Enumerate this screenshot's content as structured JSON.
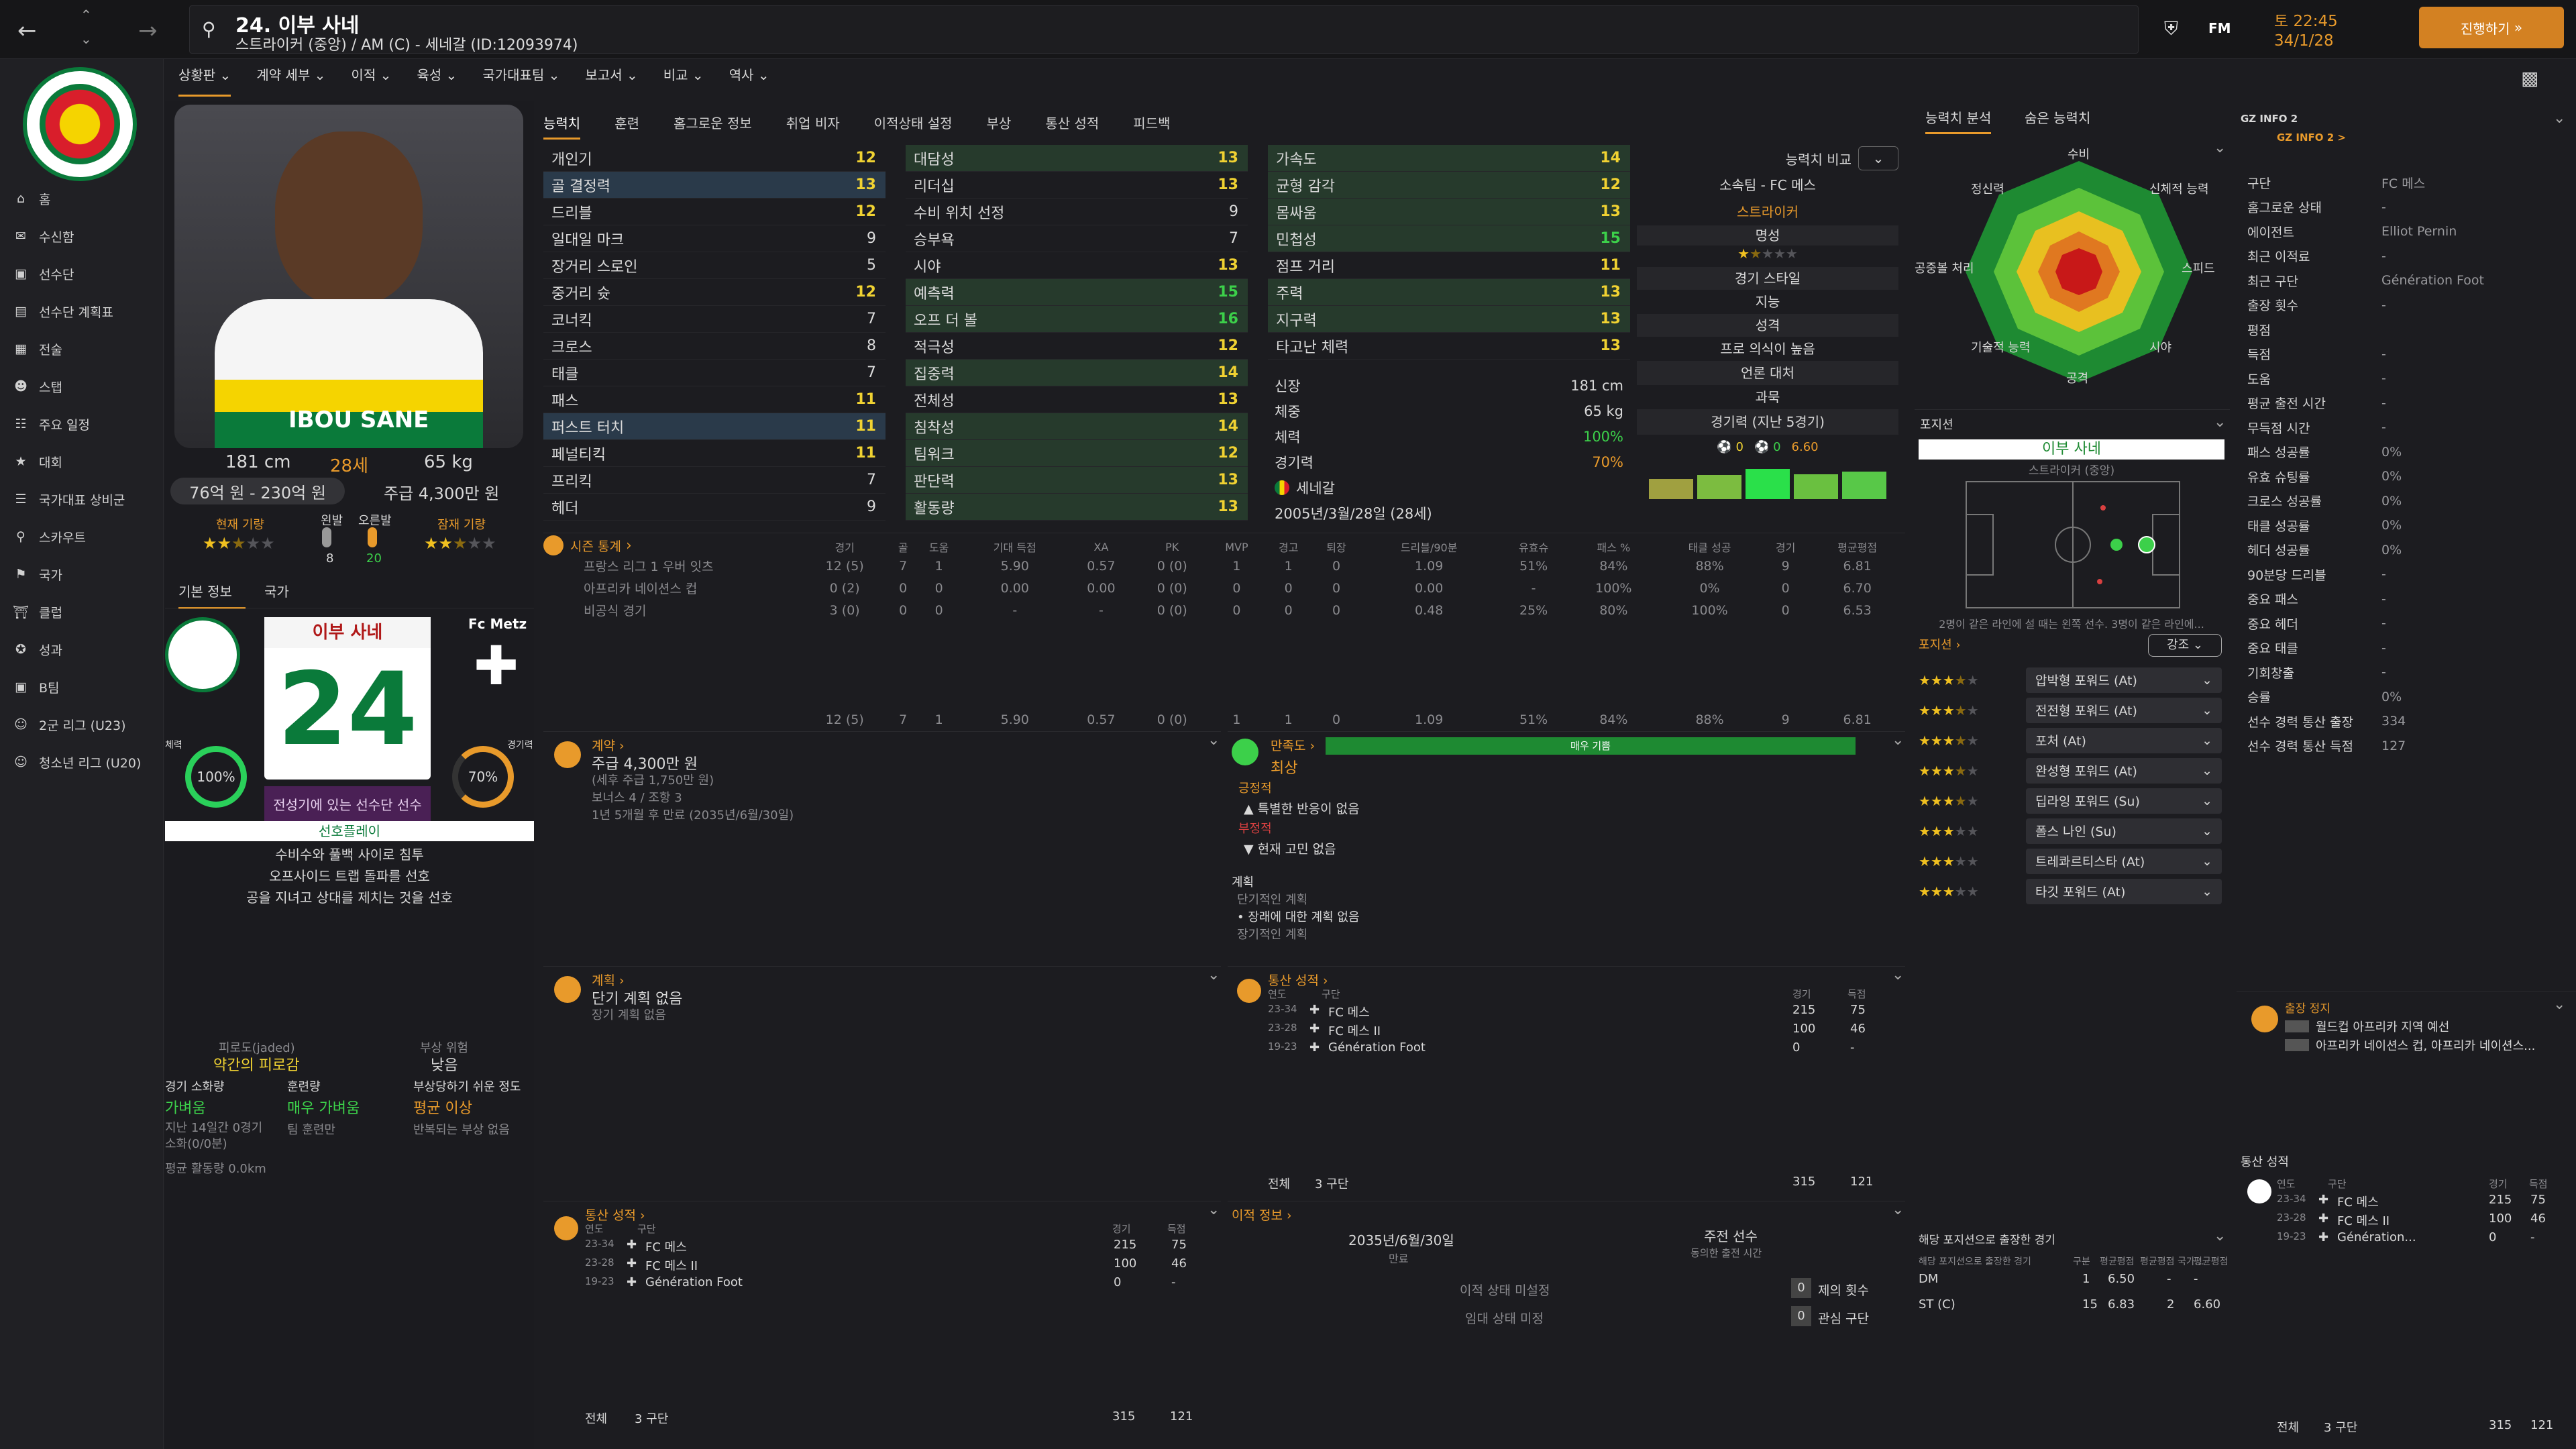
{
  "header": {
    "title": "24. 이부 사네",
    "subtitle": "스트라이커 (중앙) / AM (C) - 세네갈 (ID:12093974)",
    "date": "토 22:45",
    "date2": "34/1/28",
    "continue": "진행하기",
    "fm": "FM"
  },
  "menu": [
    "상황판",
    "계약 세부",
    "이적",
    "육성",
    "국가대표팀",
    "보고서",
    "비교",
    "역사"
  ],
  "sidebar": [
    "홈",
    "수신함",
    "선수단",
    "선수단 계획표",
    "전술",
    "스탭",
    "주요 일정",
    "대회",
    "국가대표 상비군",
    "스카우트",
    "국가",
    "클럽",
    "성과",
    "B팀",
    "2군 리그 (U23)",
    "청소년 리그 (U20)"
  ],
  "profile": {
    "height": "181 cm",
    "age": "28세",
    "weight": "65 kg",
    "value": "76억 원 - 230억 원",
    "wage": "주급 4,300만 원",
    "cur_ability": "현재 기량",
    "pot_ability": "잠재 기량",
    "left": "왼발",
    "right": "오른발",
    "left_val": "8",
    "right_val": "20",
    "shirt_name": "IBOU SANE"
  },
  "card": {
    "tab_basic": "기본 정보",
    "tab_nation": "국가",
    "name": "이부 사네",
    "number": "24",
    "club": "Fc Metz",
    "fitness_label": "체력",
    "fitness": "100%",
    "sharp_label": "경기력",
    "sharp": "70%",
    "status": "전성기에 있는 선수단 선수",
    "pref_title": "선호플레이",
    "prefs": [
      "수비수와 풀백 사이로 침투",
      "오프사이드 트랩 돌파를 선호",
      "공을 지녀고 상대를 제치는 것을 선호"
    ]
  },
  "fatigue": {
    "label": "피로도(jaded)",
    "value": "약간의 피로감",
    "injury_label": "부상 위험",
    "injury_val": "낮음",
    "load_label": "경기 소화량",
    "load_val": "가벼움",
    "train_label": "훈련량",
    "train_val": "매우 가벼움",
    "injp_label": "부상당하기 쉬운 정도",
    "injp_val": "평균 이상",
    "note1": "지난 14일간 0경기 소화(0/0분)",
    "note2": "팀 훈련만",
    "note3": "반복되는 부상 없음",
    "dist": "평균 활동량 0.0km"
  },
  "tabs": [
    "능력치",
    "훈련",
    "홈그로운 정보",
    "취업 비자",
    "이적상태 설정",
    "부상",
    "통산 성적",
    "피드백"
  ],
  "attrs_col1": [
    [
      "개인기",
      "12"
    ],
    [
      "골 결정력",
      "13"
    ],
    [
      "드리블",
      "12"
    ],
    [
      "일대일 마크",
      "9"
    ],
    [
      "장거리 스로인",
      "5"
    ],
    [
      "중거리 슛",
      "12"
    ],
    [
      "코너킥",
      "7"
    ],
    [
      "크로스",
      "8"
    ],
    [
      "태클",
      "7"
    ],
    [
      "패스",
      "11"
    ],
    [
      "퍼스트 터치",
      "11"
    ],
    [
      "페널티킥",
      "11"
    ],
    [
      "프리킥",
      "7"
    ],
    [
      "헤더",
      "9"
    ]
  ],
  "attrs_col2": [
    [
      "대담성",
      "13"
    ],
    [
      "리더십",
      "13"
    ],
    [
      "수비 위치 선정",
      "9"
    ],
    [
      "승부욕",
      "7"
    ],
    [
      "시야",
      "13"
    ],
    [
      "예측력",
      "15"
    ],
    [
      "오프 더 볼",
      "16"
    ],
    [
      "적극성",
      "12"
    ],
    [
      "집중력",
      "14"
    ],
    [
      "전체성",
      "13"
    ],
    [
      "침착성",
      "14"
    ],
    [
      "팀워크",
      "12"
    ],
    [
      "판단력",
      "13"
    ],
    [
      "활동량",
      "13"
    ]
  ],
  "attrs_col3": [
    [
      "가속도",
      "14"
    ],
    [
      "균형 감각",
      "12"
    ],
    [
      "몸싸움",
      "13"
    ],
    [
      "민첩성",
      "15"
    ],
    [
      "점프 거리",
      "11"
    ],
    [
      "주력",
      "13"
    ],
    [
      "지구력",
      "13"
    ],
    [
      "타고난 체력",
      "13"
    ]
  ],
  "bio": {
    "height_label": "신장",
    "height": "181 cm",
    "weight_label": "체중",
    "weight": "65 kg",
    "fit_label": "체력",
    "fit": "100%",
    "sharp_label": "경기력",
    "sharp": "70%",
    "nation": "세네갈",
    "dob": "2005년/3월/28일 (28세)"
  },
  "compare": {
    "label": "능력치 비교",
    "club": "소속팀 - FC 메스",
    "position": "스트라이커",
    "rep": "명성",
    "style_label": "경기 스타일",
    "style": "지능",
    "personality_label": "성격",
    "personality": "프로 의식이 높음",
    "media_label": "언론 대처",
    "media": "과묵",
    "form_label": "경기력 (지난 5경기)",
    "g": "0",
    "a": "0",
    "rating": "6.60"
  },
  "season": {
    "title": "시즌 통계",
    "cols": [
      "경기",
      "골",
      "도움",
      "기대 득점",
      "XA",
      "PK",
      "MVP",
      "경고",
      "퇴장",
      "드리블/90분",
      "유효슈",
      "패스 %",
      "태클 성공",
      "경기",
      "평균평점"
    ],
    "rows": [
      [
        "프랑스 리그 1 우버 잇츠",
        "12 (5)",
        "7",
        "1",
        "5.90",
        "0.57",
        "0 (0)",
        "1",
        "1",
        "0",
        "1.09",
        "51%",
        "84%",
        "88%",
        "9",
        "6.81"
      ],
      [
        "아프리카 네이션스 컵",
        "0 (2)",
        "0",
        "0",
        "0.00",
        "0.00",
        "0 (0)",
        "0",
        "0",
        "0",
        "0.00",
        "-",
        "100%",
        "0%",
        "0",
        "6.70"
      ],
      [
        "비공식 경기",
        "3 (0)",
        "0",
        "0",
        "-",
        "-",
        "0 (0)",
        "0",
        "0",
        "0",
        "0.48",
        "25%",
        "80%",
        "100%",
        "0",
        "6.53"
      ]
    ],
    "total": [
      "12 (5)",
      "7",
      "1",
      "5.90",
      "0.57",
      "0 (0)",
      "1",
      "1",
      "0",
      "1.09",
      "51%",
      "84%",
      "88%",
      "9",
      "6.81"
    ]
  },
  "contract": {
    "title": "계약",
    "wage": "주급 4,300만 원",
    "wage2": "(세후 주급 1,750만 원)",
    "bonus": "보너스 4 / 조항 3",
    "expire": "1년 5개월 후 만료 (2035년/6월/30일)"
  },
  "happy": {
    "title": "만족도",
    "bar": "매우 기쁨",
    "level": "최상",
    "pos_label": "긍정적",
    "pos": "특별한 반응이 없음",
    "neg_label": "부정적",
    "neg": "현재 고민 없음",
    "plan_label": "계획",
    "short_label": "단기적인 계획",
    "short": "장래에 대한 계획 없음",
    "long_label": "장기적인 계획"
  },
  "plan": {
    "title": "계획",
    "short": "단기 계획 없음",
    "long": "장기 계획 없음"
  },
  "career": {
    "title": "통산 성적",
    "col_year": "연도",
    "col_club": "구단",
    "col_apps": "경기",
    "col_goals": "득점",
    "rows": [
      [
        "23-34",
        "FC 메스",
        "215",
        "75"
      ],
      [
        "23-28",
        "FC 메스 II",
        "100",
        "46"
      ],
      [
        "19-23",
        "Génération Foot",
        "0",
        "-"
      ]
    ],
    "total_label": "전체",
    "total_clubs": "3 구단",
    "total_apps": "315",
    "total_goals": "121"
  },
  "transfer": {
    "title": "이적 정보",
    "expire": "2035년/6월/30일",
    "expire_label": "만료",
    "status": "주전 선수",
    "status_sub": "동의한 출전 시간",
    "t1": "이적 상태 미설정",
    "t2": "임대 상태 미정",
    "n1": "0",
    "n1_label": "제의 횟수",
    "n2": "0",
    "n2_label": "관심 구단"
  },
  "radar": {
    "tab1": "능력치 분석",
    "tab2": "숨은 능력치",
    "labels": [
      "수비",
      "신체적 능력",
      "스피드",
      "시야",
      "공격",
      "기술적 능력",
      "공중볼 처리",
      "정신력"
    ]
  },
  "position": {
    "title": "포지션",
    "name": "이부 사네",
    "role": "스트라이커 (중앙)",
    "note": "2명이 같은 라인에 설 때는 왼쪽 선수. 3명이 같은 라인에...",
    "roles_label": "포지션",
    "emph": "강조",
    "roles": [
      [
        "압박형 포워드 (At)",
        3.5
      ],
      [
        "전전형 포워드 (At)",
        3.5
      ],
      [
        "포처 (At)",
        3.5
      ],
      [
        "완성형 포워드 (At)",
        3.5
      ],
      [
        "딥라잉 포워드 (Su)",
        3.5
      ],
      [
        "폴스 나인 (Su)",
        3
      ],
      [
        "트레콰르티스타 (At)",
        3
      ],
      [
        "타깃 포워드 (At)",
        3
      ]
    ]
  },
  "posapps": {
    "title": "해당 포지션으로 출장한 경기",
    "col1": "해당 포지션으로 출장한 경기",
    "col2": "구분",
    "col3": "평균평점",
    "col4": "평균평점 국가...",
    "col5": "평균평점",
    "rows": [
      [
        "DM",
        "1",
        "6.50",
        "-",
        "-"
      ],
      [
        "ST (C)",
        "15",
        "6.83",
        "2",
        "6.60"
      ]
    ]
  },
  "gz": {
    "title": "GZ INFO 2",
    "sub": "GZ INFO 2 >",
    "rows": [
      [
        "구단",
        "FC 메스"
      ],
      [
        "홈그로운 상태",
        "-"
      ],
      [
        "에이전트",
        "Elliot Pernin"
      ],
      [
        "최근 이적료",
        "-"
      ],
      [
        "최근 구단",
        "Génération Foot"
      ],
      [
        "출장 횟수",
        "-"
      ],
      [
        "평점",
        ""
      ],
      [
        "득점",
        "-"
      ],
      [
        "도움",
        "-"
      ],
      [
        "평균 출전 시간",
        "-"
      ],
      [
        "무득점 시간",
        "-"
      ],
      [
        "패스 성공률",
        "0%"
      ],
      [
        "유효 슈팅률",
        "0%"
      ],
      [
        "크로스 성공률",
        "0%"
      ],
      [
        "태클 성공률",
        "0%"
      ],
      [
        "헤더 성공률",
        "0%"
      ],
      [
        "90분당 드리블",
        "-"
      ],
      [
        "중요 패스",
        "-"
      ],
      [
        "중요 헤더",
        "-"
      ],
      [
        "중요 태클",
        "-"
      ],
      [
        "기회창출",
        "-"
      ],
      [
        "승률",
        "0%"
      ],
      [
        "선수 경력 통산 출장",
        "334"
      ],
      [
        "선수 경력 통산 득점",
        "127"
      ]
    ]
  },
  "ban": {
    "title": "출장 정지",
    "r1": "월드컵 아프리카 지역 예선",
    "r2": "아프리카 네이션스 컵, 아프리카 네이션스..."
  },
  "career2": {
    "title": "통산 성적",
    "rows": [
      [
        "23-34",
        "FC 메스",
        "215",
        "75"
      ],
      [
        "23-28",
        "FC 메스 II",
        "100",
        "46"
      ],
      [
        "19-23",
        "Génération...",
        "0",
        "-"
      ]
    ],
    "total_label": "전체",
    "total_clubs": "3 구단",
    "total_apps": "315",
    "total_goals": "121"
  },
  "colors": {
    "accent": "#e89a2b",
    "yellow": "#f0d232",
    "green": "#3cd04a"
  }
}
